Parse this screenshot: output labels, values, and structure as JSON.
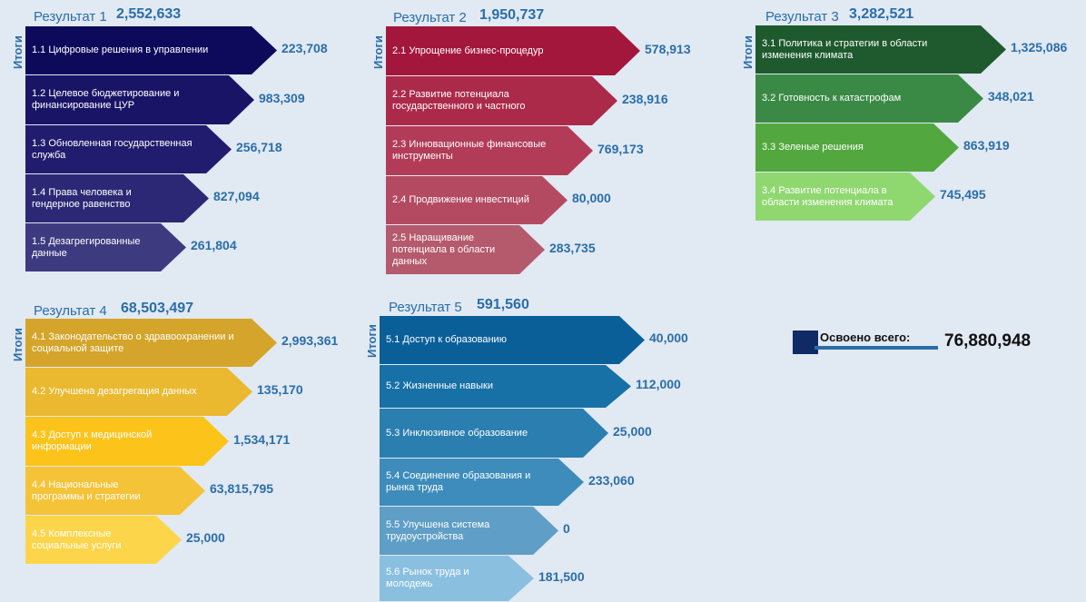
{
  "groups": [
    {
      "title": "Результат 1",
      "total": "2,552,633",
      "side": "Итоги",
      "items": [
        {
          "label": "1.1 Цифровые решения в управлении",
          "value": "223,708",
          "color": "#0d0a5c"
        },
        {
          "label": "1.2 Целевое бюджетирование и финансирование ЦУР",
          "value": "983,309",
          "color": "#1a1466"
        },
        {
          "label": "1.3 Обновленная государственная служба",
          "value": "256,718",
          "color": "#221c6e"
        },
        {
          "label": "1.4 Права человека и гендерное равенство",
          "value": "827,094",
          "color": "#2c2875"
        },
        {
          "label": "1.5 Дезагрегированные данные",
          "value": "261,804",
          "color": "#3d3a80"
        }
      ]
    },
    {
      "title": "Результат 2",
      "total": "1,950,737",
      "side": "Итоги",
      "items": [
        {
          "label": "2.1 Упрощение бизнес-процедур",
          "value": "578,913",
          "color": "#a3173c"
        },
        {
          "label": "2.2 Развитие потенциала государственного и частного",
          "value": "238,916",
          "color": "#ab2a4a"
        },
        {
          "label": "2.3 Инновационные финансовые инструменты",
          "value": "769,173",
          "color": "#b23c58"
        },
        {
          "label": "2.4 Продвижение инвестиций",
          "value": "80,000",
          "color": "#b44a62"
        },
        {
          "label": "2.5 Наращивание потенциала в области данных",
          "value": "283,735",
          "color": "#b45a6c"
        }
      ]
    },
    {
      "title": "Результат 3",
      "total": "3,282,521",
      "side": "Итоги",
      "items": [
        {
          "label": "3.1 Политика и стратегии в области изменения климата",
          "value": "1,325,086",
          "color": "#1e5a2e"
        },
        {
          "label": "3.2 Готовность к катастрофам",
          "value": "348,021",
          "color": "#3a8a45"
        },
        {
          "label": "3.3 Зеленые решения",
          "value": "863,919",
          "color": "#52a83e"
        },
        {
          "label": "3.4 Развитие потенциала в области изменения климата",
          "value": "745,495",
          "color": "#8fd870"
        }
      ]
    },
    {
      "title": "Результат 4",
      "total": "68,503,497",
      "side": "Итоги",
      "items": [
        {
          "label": "4.1 Законодательство о здравоохранении и социальной защите",
          "value": "2,993,361",
          "color": "#d4a52a"
        },
        {
          "label": "4.2 Улучшена дезагрегация данных",
          "value": "135,170",
          "color": "#eab92f"
        },
        {
          "label": "4.3 Доступ к медицинской информации",
          "value": "1,534,171",
          "color": "#fcc31a"
        },
        {
          "label": "4.4 Национальные программы и стратегии",
          "value": "63,815,795",
          "color": "#f5c338"
        },
        {
          "label": "4.5 Комплексные социальные услуги",
          "value": "25,000",
          "color": "#fdd54a"
        }
      ]
    },
    {
      "title": "Результат 5",
      "total": "591,560",
      "side": "Итоги",
      "items": [
        {
          "label": "5.1 Доступ к образованию",
          "value": "40,000",
          "color": "#0a5f99"
        },
        {
          "label": "5.2 Жизненные навыки",
          "value": "112,000",
          "color": "#1770a6"
        },
        {
          "label": "5.3 Инклюзивное образование",
          "value": "25,000",
          "color": "#2a7eb0"
        },
        {
          "label": "5.4 Соединение образования и рынка труда",
          "value": "233,060",
          "color": "#3d8cbb"
        },
        {
          "label": "5.5 Улучшена система трудоустройства",
          "value": "0",
          "color": "#5f9ec6"
        },
        {
          "label": "5.6 Рынок труда и молодежь",
          "value": "181,500",
          "color": "#8bbfe0"
        }
      ]
    }
  ],
  "summary": {
    "label": "Освоено всего:",
    "value": "76,880,948"
  }
}
